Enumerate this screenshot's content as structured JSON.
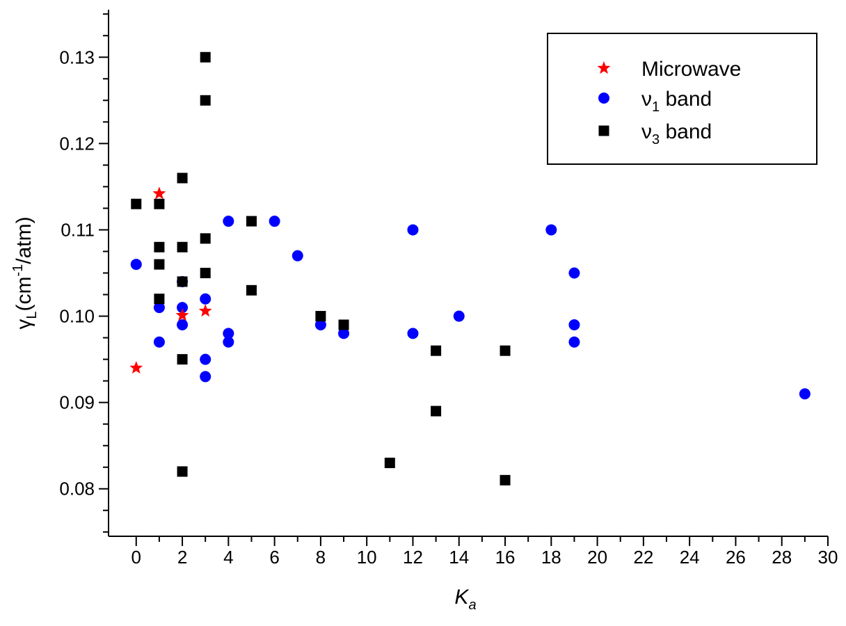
{
  "chart_data": {
    "type": "scatter",
    "xlabel": {
      "main": "K",
      "sub": "a"
    },
    "ylabel": {
      "main": "γ",
      "sub": "L",
      "mid": "(cm",
      "sup": "-1",
      "end": "/atm)"
    },
    "xlim": [
      -1.2,
      30
    ],
    "ylim": [
      0.0745,
      0.1355
    ],
    "xticks": [
      0,
      2,
      4,
      6,
      8,
      10,
      12,
      14,
      16,
      18,
      20,
      22,
      24,
      26,
      28,
      30
    ],
    "yticks": [
      0.08,
      0.09,
      0.1,
      0.11,
      0.12,
      0.13
    ],
    "ytick_labels": [
      "0.08",
      "0.09",
      "0.10",
      "0.11",
      "0.12",
      "0.13"
    ],
    "grid": false,
    "legend_position": "top-right",
    "series": [
      {
        "name": "Microwave",
        "marker": "star",
        "color": "#ff0000",
        "points": [
          [
            0,
            0.094
          ],
          [
            1,
            0.1142
          ],
          [
            2,
            0.1001
          ],
          [
            3,
            0.1006
          ]
        ]
      },
      {
        "name": {
          "main": "ν",
          "sub": "1",
          "end": " band"
        },
        "marker": "circle",
        "color": "#0000ff",
        "points": [
          [
            0,
            0.106
          ],
          [
            1,
            0.101
          ],
          [
            1,
            0.097
          ],
          [
            2,
            0.104
          ],
          [
            2,
            0.101
          ],
          [
            2,
            0.099
          ],
          [
            3,
            0.102
          ],
          [
            3,
            0.095
          ],
          [
            3,
            0.093
          ],
          [
            4,
            0.111
          ],
          [
            4,
            0.098
          ],
          [
            4,
            0.097
          ],
          [
            6,
            0.111
          ],
          [
            7,
            0.107
          ],
          [
            8,
            0.099
          ],
          [
            9,
            0.098
          ],
          [
            12,
            0.11
          ],
          [
            12,
            0.098
          ],
          [
            14,
            0.1
          ],
          [
            18,
            0.11
          ],
          [
            19,
            0.105
          ],
          [
            19,
            0.099
          ],
          [
            19,
            0.097
          ],
          [
            29,
            0.091
          ]
        ]
      },
      {
        "name": {
          "main": "ν",
          "sub": "3",
          "end": " band"
        },
        "marker": "square",
        "color": "#000000",
        "points": [
          [
            0,
            0.113
          ],
          [
            1,
            0.113
          ],
          [
            1,
            0.108
          ],
          [
            1,
            0.106
          ],
          [
            1,
            0.102
          ],
          [
            2,
            0.116
          ],
          [
            2,
            0.108
          ],
          [
            2,
            0.104
          ],
          [
            2,
            0.095
          ],
          [
            2,
            0.082
          ],
          [
            3,
            0.13
          ],
          [
            3,
            0.125
          ],
          [
            3,
            0.109
          ],
          [
            3,
            0.105
          ],
          [
            5,
            0.111
          ],
          [
            5,
            0.103
          ],
          [
            8,
            0.1
          ],
          [
            9,
            0.099
          ],
          [
            11,
            0.083
          ],
          [
            13,
            0.096
          ],
          [
            13,
            0.089
          ],
          [
            16,
            0.096
          ],
          [
            16,
            0.081
          ]
        ]
      }
    ]
  }
}
